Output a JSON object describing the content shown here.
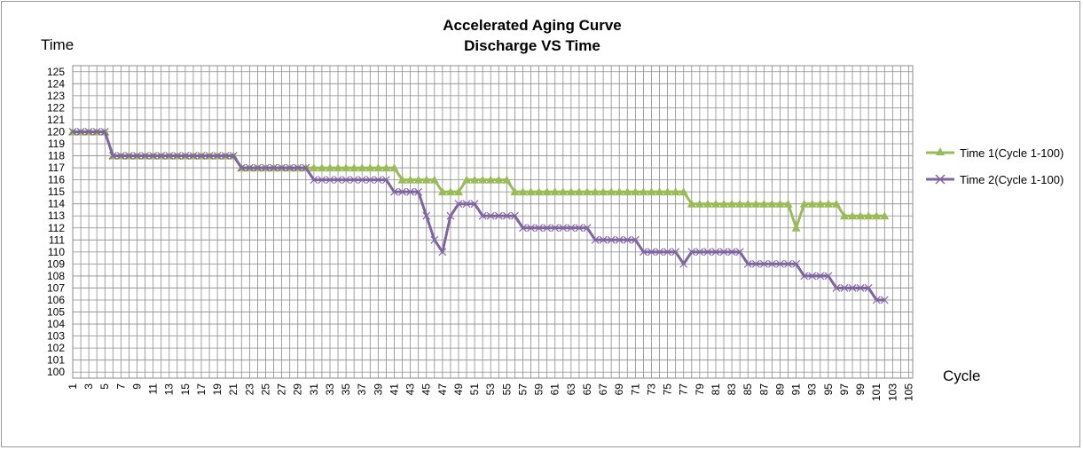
{
  "chart_data": {
    "type": "line",
    "title": "Accelerated Aging Curve",
    "subtitle": "Discharge VS Time",
    "xlabel": "Cycle",
    "ylabel": "Time",
    "xlim": [
      1,
      105
    ],
    "ylim": [
      100,
      125
    ],
    "x_ticks": [
      1,
      3,
      5,
      7,
      9,
      11,
      13,
      15,
      17,
      19,
      21,
      23,
      25,
      27,
      29,
      31,
      33,
      35,
      37,
      39,
      41,
      43,
      45,
      47,
      49,
      51,
      53,
      55,
      57,
      59,
      61,
      63,
      65,
      67,
      69,
      71,
      73,
      75,
      77,
      79,
      81,
      83,
      85,
      87,
      89,
      91,
      93,
      95,
      97,
      99,
      101,
      103,
      105
    ],
    "y_ticks": [
      100,
      101,
      102,
      103,
      104,
      105,
      106,
      107,
      108,
      109,
      110,
      111,
      112,
      113,
      114,
      115,
      116,
      117,
      118,
      119,
      120,
      121,
      122,
      123,
      124,
      125
    ],
    "grid": true,
    "legend_position": "right",
    "series": [
      {
        "name": "Time 1(Cycle 1-100)",
        "color": "#9bbb59",
        "marker": "triangle",
        "x": [
          1,
          2,
          3,
          4,
          5,
          6,
          7,
          8,
          9,
          10,
          11,
          12,
          13,
          14,
          15,
          16,
          17,
          18,
          19,
          20,
          21,
          22,
          23,
          24,
          25,
          26,
          27,
          28,
          29,
          30,
          31,
          32,
          33,
          34,
          35,
          36,
          37,
          38,
          39,
          40,
          41,
          42,
          43,
          44,
          45,
          46,
          47,
          48,
          49,
          50,
          51,
          52,
          53,
          54,
          55,
          56,
          57,
          58,
          59,
          60,
          61,
          62,
          63,
          64,
          65,
          66,
          67,
          68,
          69,
          70,
          71,
          72,
          73,
          74,
          75,
          76,
          77,
          78,
          79,
          80,
          81,
          82,
          83,
          84,
          85,
          86,
          87,
          88,
          89,
          90,
          91,
          92,
          93,
          94,
          95,
          96,
          97,
          98,
          99,
          100,
          101,
          102
        ],
        "y": [
          120,
          120,
          120,
          120,
          120,
          118,
          118,
          118,
          118,
          118,
          118,
          118,
          118,
          118,
          118,
          118,
          118,
          118,
          118,
          118,
          118,
          117,
          117,
          117,
          117,
          117,
          117,
          117,
          117,
          117,
          117,
          117,
          117,
          117,
          117,
          117,
          117,
          117,
          117,
          117,
          117,
          116,
          116,
          116,
          116,
          116,
          115,
          115,
          115,
          116,
          116,
          116,
          116,
          116,
          116,
          115,
          115,
          115,
          115,
          115,
          115,
          115,
          115,
          115,
          115,
          115,
          115,
          115,
          115,
          115,
          115,
          115,
          115,
          115,
          115,
          115,
          115,
          114,
          114,
          114,
          114,
          114,
          114,
          114,
          114,
          114,
          114,
          114,
          114,
          114,
          112,
          114,
          114,
          114,
          114,
          114,
          113,
          113,
          113,
          113,
          113,
          113
        ]
      },
      {
        "name": "Time 2(Cycle 1-100)",
        "color": "#8064a2",
        "marker": "x",
        "x": [
          1,
          2,
          3,
          4,
          5,
          6,
          7,
          8,
          9,
          10,
          11,
          12,
          13,
          14,
          15,
          16,
          17,
          18,
          19,
          20,
          21,
          22,
          23,
          24,
          25,
          26,
          27,
          28,
          29,
          30,
          31,
          32,
          33,
          34,
          35,
          36,
          37,
          38,
          39,
          40,
          41,
          42,
          43,
          44,
          45,
          46,
          47,
          48,
          49,
          50,
          51,
          52,
          53,
          54,
          55,
          56,
          57,
          58,
          59,
          60,
          61,
          62,
          63,
          64,
          65,
          66,
          67,
          68,
          69,
          70,
          71,
          72,
          73,
          74,
          75,
          76,
          77,
          78,
          79,
          80,
          81,
          82,
          83,
          84,
          85,
          86,
          87,
          88,
          89,
          90,
          91,
          92,
          93,
          94,
          95,
          96,
          97,
          98,
          99,
          100,
          101,
          102
        ],
        "y": [
          120,
          120,
          120,
          120,
          120,
          118,
          118,
          118,
          118,
          118,
          118,
          118,
          118,
          118,
          118,
          118,
          118,
          118,
          118,
          118,
          118,
          117,
          117,
          117,
          117,
          117,
          117,
          117,
          117,
          117,
          116,
          116,
          116,
          116,
          116,
          116,
          116,
          116,
          116,
          116,
          115,
          115,
          115,
          115,
          113,
          111,
          110,
          113,
          114,
          114,
          114,
          113,
          113,
          113,
          113,
          113,
          112,
          112,
          112,
          112,
          112,
          112,
          112,
          112,
          112,
          111,
          111,
          111,
          111,
          111,
          111,
          110,
          110,
          110,
          110,
          110,
          109,
          110,
          110,
          110,
          110,
          110,
          110,
          110,
          109,
          109,
          109,
          109,
          109,
          109,
          109,
          108,
          108,
          108,
          108,
          107,
          107,
          107,
          107,
          107,
          106,
          106
        ]
      }
    ]
  }
}
